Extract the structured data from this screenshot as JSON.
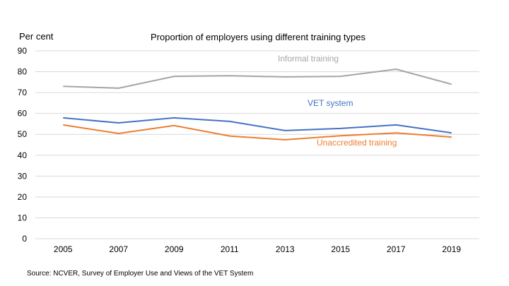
{
  "chart_data": {
    "type": "line",
    "title": "Proportion of employers using different training types",
    "ylabel": "Per cent",
    "xlabel": "",
    "ylim": [
      0,
      90
    ],
    "yticks": [
      0,
      10,
      20,
      30,
      40,
      50,
      60,
      70,
      80,
      90
    ],
    "ytick_labels": [
      "0",
      "10",
      "20",
      "30",
      "40",
      "50",
      "60",
      "70",
      "80",
      "90"
    ],
    "grid": true,
    "legend": "inline-labels",
    "categories": [
      "2005",
      "2007",
      "2009",
      "2011",
      "2013",
      "2015",
      "2017",
      "2019"
    ],
    "series": [
      {
        "name": "Informal training",
        "color": "#a5a5a5",
        "values": [
          73.0,
          72.1,
          77.8,
          78.1,
          77.5,
          77.8,
          81.2,
          74.0
        ]
      },
      {
        "name": "VET system",
        "color": "#4472c4",
        "values": [
          57.9,
          55.5,
          57.9,
          56.2,
          51.8,
          52.8,
          54.5,
          50.7
        ]
      },
      {
        "name": "Unaccredited training",
        "color": "#ed7d31",
        "values": [
          54.5,
          50.4,
          54.2,
          49.2,
          47.4,
          49.3,
          50.7,
          48.7
        ]
      }
    ],
    "source": "Source: NCVER, Survey of Employer Use and Views of the VET System"
  }
}
